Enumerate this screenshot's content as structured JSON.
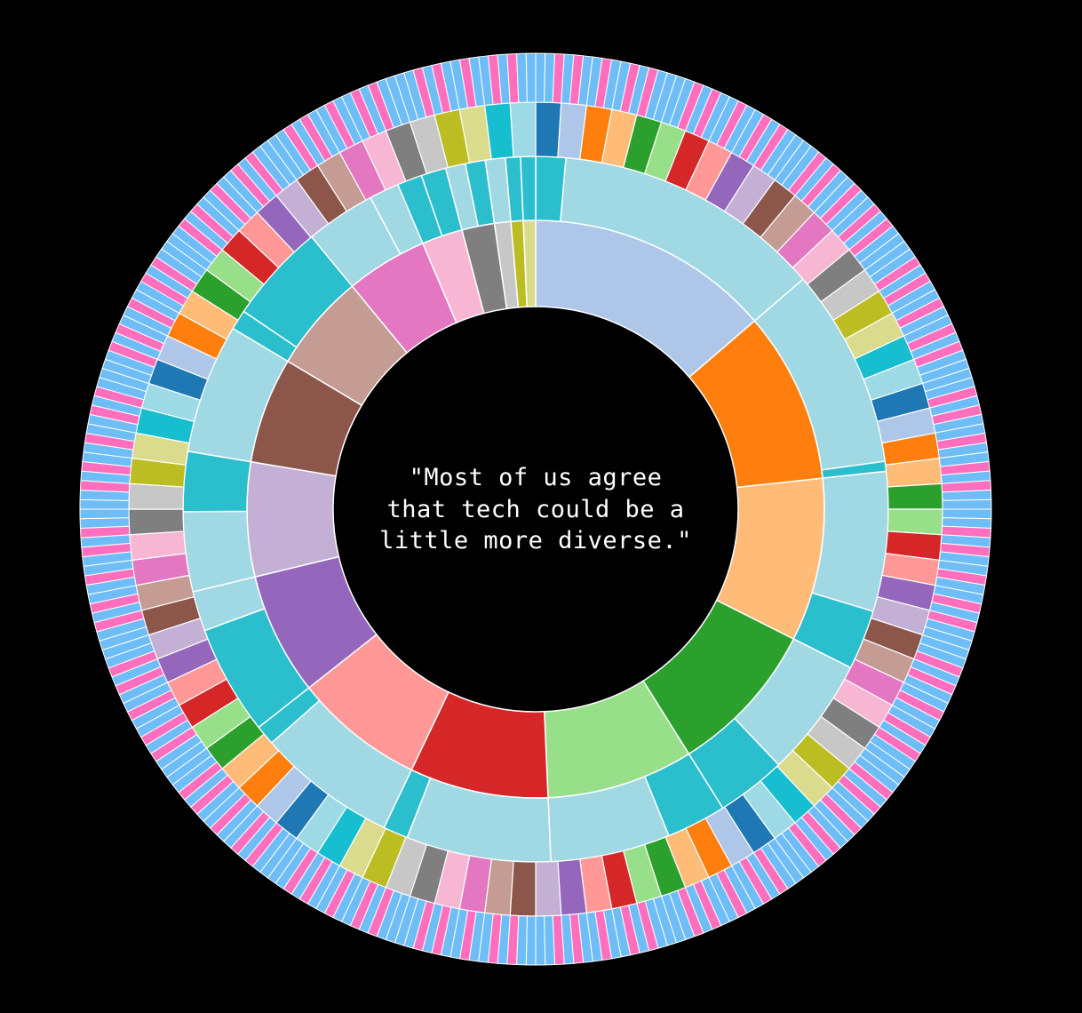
{
  "chart_data": {
    "type": "sunburst",
    "center_text": [
      "\"Most of us agree",
      "that tech could be a",
      "little more diverse.\""
    ],
    "background": "#000000",
    "stroke_color": "#ffffff",
    "rings": {
      "inner": {
        "palette": [
          "#aec7e8",
          "#ff7f0e",
          "#ffbb78",
          "#2ca02c",
          "#98df8a",
          "#d62728",
          "#ff9896",
          "#9467bd",
          "#c5b0d5",
          "#8c564b",
          "#c49c94",
          "#e377c2",
          "#f7b6d2",
          "#7f7f7f",
          "#c7c7c7",
          "#bcbd22",
          "#dbdb8d"
        ],
        "values": [
          60,
          42,
          40,
          38,
          36,
          34,
          32,
          30,
          28,
          26,
          24,
          20,
          10,
          8,
          4,
          3,
          3
        ]
      },
      "middle": {
        "palette": {
          "male": "#a0d8e3",
          "female": "#2bbecd"
        },
        "groups": [
          [
            {
              "g": "female",
              "v": 6
            },
            {
              "g": "male",
              "v": 54
            }
          ],
          [
            {
              "g": "male",
              "v": 40
            },
            {
              "g": "female",
              "v": 2
            }
          ],
          [
            {
              "g": "male",
              "v": 28
            },
            {
              "g": "female",
              "v": 12
            }
          ],
          [
            {
              "g": "male",
              "v": 24
            },
            {
              "g": "female",
              "v": 14
            }
          ],
          [
            {
              "g": "female",
              "v": 12
            },
            {
              "g": "male",
              "v": 24
            }
          ],
          [
            {
              "g": "male",
              "v": 29
            },
            {
              "g": "female",
              "v": 5
            }
          ],
          [
            {
              "g": "male",
              "v": 28
            },
            {
              "g": "female",
              "v": 4
            }
          ],
          [
            {
              "g": "female",
              "v": 22
            },
            {
              "g": "male",
              "v": 8
            }
          ],
          [
            {
              "g": "male",
              "v": 16
            },
            {
              "g": "female",
              "v": 12
            }
          ],
          [
            {
              "g": "male",
              "v": 26
            }
          ],
          [
            {
              "g": "female",
              "v": 4
            },
            {
              "g": "female",
              "v": 20
            }
          ],
          [
            {
              "g": "male",
              "v": 14
            },
            {
              "g": "male",
              "v": 6
            }
          ],
          [
            {
              "g": "female",
              "v": 5
            },
            {
              "g": "female",
              "v": 5
            }
          ],
          [
            {
              "g": "male",
              "v": 4
            },
            {
              "g": "female",
              "v": 4
            }
          ],
          [
            {
              "g": "male",
              "v": 4
            }
          ],
          [
            {
              "g": "female",
              "v": 3
            }
          ],
          [
            {
              "g": "female",
              "v": 3
            }
          ]
        ]
      },
      "outer_categories": {
        "palette": [
          "#1f77b4",
          "#aec7e8",
          "#ff7f0e",
          "#ffbb78",
          "#2ca02c",
          "#98df8a",
          "#d62728",
          "#ff9896",
          "#9467bd",
          "#c5b0d5",
          "#8c564b",
          "#c49c94",
          "#e377c2",
          "#f7b6d2",
          "#7f7f7f",
          "#c7c7c7",
          "#bcbd22",
          "#dbdb8d",
          "#17becf",
          "#9edae5"
        ],
        "cycles": 5
      },
      "outermost": {
        "palette": {
          "blue": "#6fbdf7",
          "pink": "#ff6fbe"
        },
        "segments": 300,
        "pattern": [
          "blue",
          "blue",
          "pink",
          "blue",
          "pink",
          "blue",
          "blue",
          "pink",
          "blue",
          "blue",
          "pink",
          "blue",
          "pink",
          "blue",
          "blue"
        ]
      }
    }
  }
}
